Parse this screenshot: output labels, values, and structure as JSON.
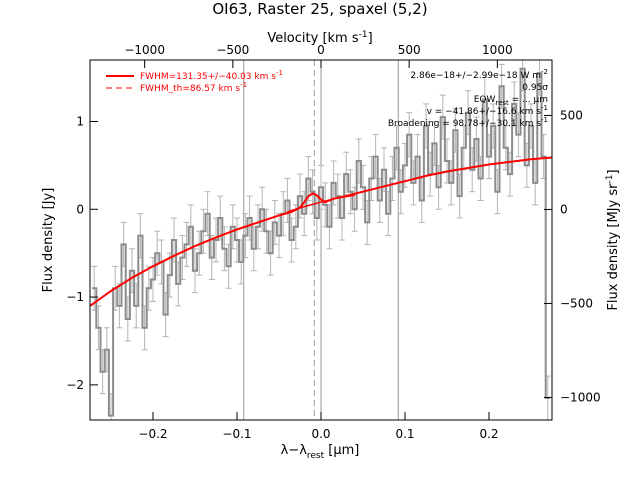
{
  "chart_data": {
    "type": "line",
    "title": "OI63, Raster 25, spaxel (5,2)",
    "xlabel": "λ−λ",
    "xlabel_sub": "rest",
    "xlabel_unit": "[μm]",
    "ylabel": "Flux density [Jy]",
    "top_axis_label": "Velocity [km s",
    "top_axis_label_sup": "-1",
    "top_axis_label_end": "]",
    "right_axis_label": "Flux density [MJy sr",
    "right_axis_label_sup": "-1",
    "right_axis_label_end": "]",
    "xlim": [
      -0.275,
      0.275
    ],
    "ylim": [
      -2.4,
      1.7
    ],
    "top_xlim": [
      -1310,
      1310
    ],
    "right_ylim": [
      -1120,
      795
    ],
    "x_ticks": [
      -0.2,
      -0.1,
      0.0,
      0.1,
      0.2
    ],
    "x_tick_labels": [
      "−0.2",
      "−0.1",
      "0.0",
      "0.1",
      "0.2"
    ],
    "y_ticks": [
      -2,
      -1,
      0,
      1
    ],
    "y_tick_labels": [
      "−2",
      "−1",
      "0",
      "1"
    ],
    "top_ticks": [
      -1000,
      -500,
      0,
      500,
      1000
    ],
    "top_tick_labels": [
      "−1000",
      "−500",
      "0",
      "500",
      "1000"
    ],
    "right_ticks": [
      -1000,
      -500,
      0,
      500
    ],
    "right_tick_labels": [
      "−1000",
      "−500",
      "0",
      "500"
    ],
    "vertical_lines": [
      -0.092,
      0.0,
      0.092
    ],
    "reference_line": -0.008,
    "legend": [
      {
        "label": "FWHM=131.35+/−40.03 km s",
        "sup": "-1",
        "style": "solid"
      },
      {
        "label": "FWHM_th=86.57 km s",
        "sup": "-1",
        "style": "dashed"
      }
    ],
    "annotations": [
      "2.86e−18+/−2.99e−18 W m",
      "0.95σ",
      "EQW",
      "v = −41.86+/−16.6 km s",
      "Broadening = 98.78+/−30.1 km s"
    ],
    "observed": {
      "name": "",
      "color": "#8c8c8c",
      "x": [
        -0.27,
        -0.265,
        -0.26,
        -0.255,
        -0.25,
        -0.245,
        -0.24,
        -0.235,
        -0.23,
        -0.225,
        -0.22,
        -0.215,
        -0.21,
        -0.205,
        -0.2,
        -0.195,
        -0.19,
        -0.185,
        -0.18,
        -0.175,
        -0.17,
        -0.165,
        -0.16,
        -0.155,
        -0.15,
        -0.145,
        -0.14,
        -0.135,
        -0.13,
        -0.125,
        -0.12,
        -0.115,
        -0.11,
        -0.105,
        -0.1,
        -0.095,
        -0.09,
        -0.085,
        -0.08,
        -0.075,
        -0.07,
        -0.065,
        -0.06,
        -0.055,
        -0.05,
        -0.045,
        -0.04,
        -0.035,
        -0.03,
        -0.025,
        -0.02,
        -0.015,
        -0.01,
        -0.005,
        0.0,
        0.005,
        0.01,
        0.015,
        0.02,
        0.025,
        0.03,
        0.035,
        0.04,
        0.045,
        0.05,
        0.055,
        0.06,
        0.065,
        0.07,
        0.075,
        0.08,
        0.085,
        0.09,
        0.095,
        0.1,
        0.105,
        0.11,
        0.115,
        0.12,
        0.125,
        0.13,
        0.135,
        0.14,
        0.145,
        0.15,
        0.155,
        0.16,
        0.165,
        0.17,
        0.175,
        0.18,
        0.185,
        0.19,
        0.195,
        0.2,
        0.205,
        0.21,
        0.215,
        0.22,
        0.225,
        0.23,
        0.235,
        0.24,
        0.245,
        0.25,
        0.255,
        0.26,
        0.265,
        0.27
      ],
      "y": [
        -0.9,
        -1.35,
        -1.85,
        -1.6,
        -2.35,
        -0.9,
        -1.1,
        -0.4,
        -1.25,
        -0.7,
        -1.1,
        -0.3,
        -1.35,
        -0.9,
        -0.8,
        -0.5,
        -0.6,
        -1.2,
        -0.75,
        -0.35,
        -0.85,
        -0.55,
        -0.4,
        -0.2,
        -0.7,
        -0.5,
        -0.25,
        -0.05,
        -0.55,
        -0.35,
        -0.1,
        -0.45,
        -0.65,
        -0.2,
        -0.35,
        -0.6,
        -0.3,
        -0.1,
        -0.45,
        -0.2,
        0.0,
        -0.25,
        -0.5,
        -0.15,
        -0.3,
        -0.05,
        0.1,
        -0.35,
        -0.2,
        0.15,
        -0.05,
        0.35,
        0.2,
        -0.1,
        0.25,
        0.05,
        -0.2,
        0.3,
        0.15,
        -0.1,
        0.4,
        0.2,
        0.0,
        0.55,
        0.25,
        -0.15,
        0.35,
        0.6,
        0.1,
        0.45,
        -0.05,
        0.35,
        0.7,
        0.2,
        0.5,
        0.85,
        0.3,
        0.6,
        0.1,
        0.95,
        0.4,
        0.75,
        0.25,
        1.05,
        0.55,
        0.3,
        0.9,
        0.15,
        0.7,
        1.1,
        0.45,
        0.8,
        0.35,
        1.25,
        0.6,
        0.95,
        0.2,
        1.4,
        0.7,
        0.4,
        1.2,
        0.85,
        1.6,
        0.5,
        0.95,
        0.3,
        1.55,
        0.6,
        -2.15
      ],
      "err": 0.25
    },
    "fit": {
      "name": "",
      "color": "#ff0000",
      "x": [
        -0.275,
        -0.25,
        -0.225,
        -0.2,
        -0.175,
        -0.15,
        -0.125,
        -0.1,
        -0.075,
        -0.05,
        -0.035,
        -0.025,
        -0.02,
        -0.015,
        -0.01,
        -0.005,
        0.0,
        0.005,
        0.01,
        0.015,
        0.025,
        0.05,
        0.075,
        0.1,
        0.125,
        0.15,
        0.175,
        0.2,
        0.225,
        0.25,
        0.275
      ],
      "y": [
        -1.1,
        -0.93,
        -0.78,
        -0.65,
        -0.53,
        -0.42,
        -0.32,
        -0.23,
        -0.15,
        -0.07,
        -0.03,
        0.02,
        0.08,
        0.15,
        0.18,
        0.16,
        0.11,
        0.08,
        0.1,
        0.12,
        0.14,
        0.2,
        0.26,
        0.32,
        0.38,
        0.43,
        0.47,
        0.51,
        0.54,
        0.57,
        0.59
      ]
    },
    "continuum": {
      "name": "",
      "color": "#ff0000",
      "x": [
        -0.04,
        -0.02,
        0.0,
        0.02,
        0.04
      ],
      "y": [
        -0.03,
        0.03,
        0.08,
        0.13,
        0.16
      ]
    }
  }
}
